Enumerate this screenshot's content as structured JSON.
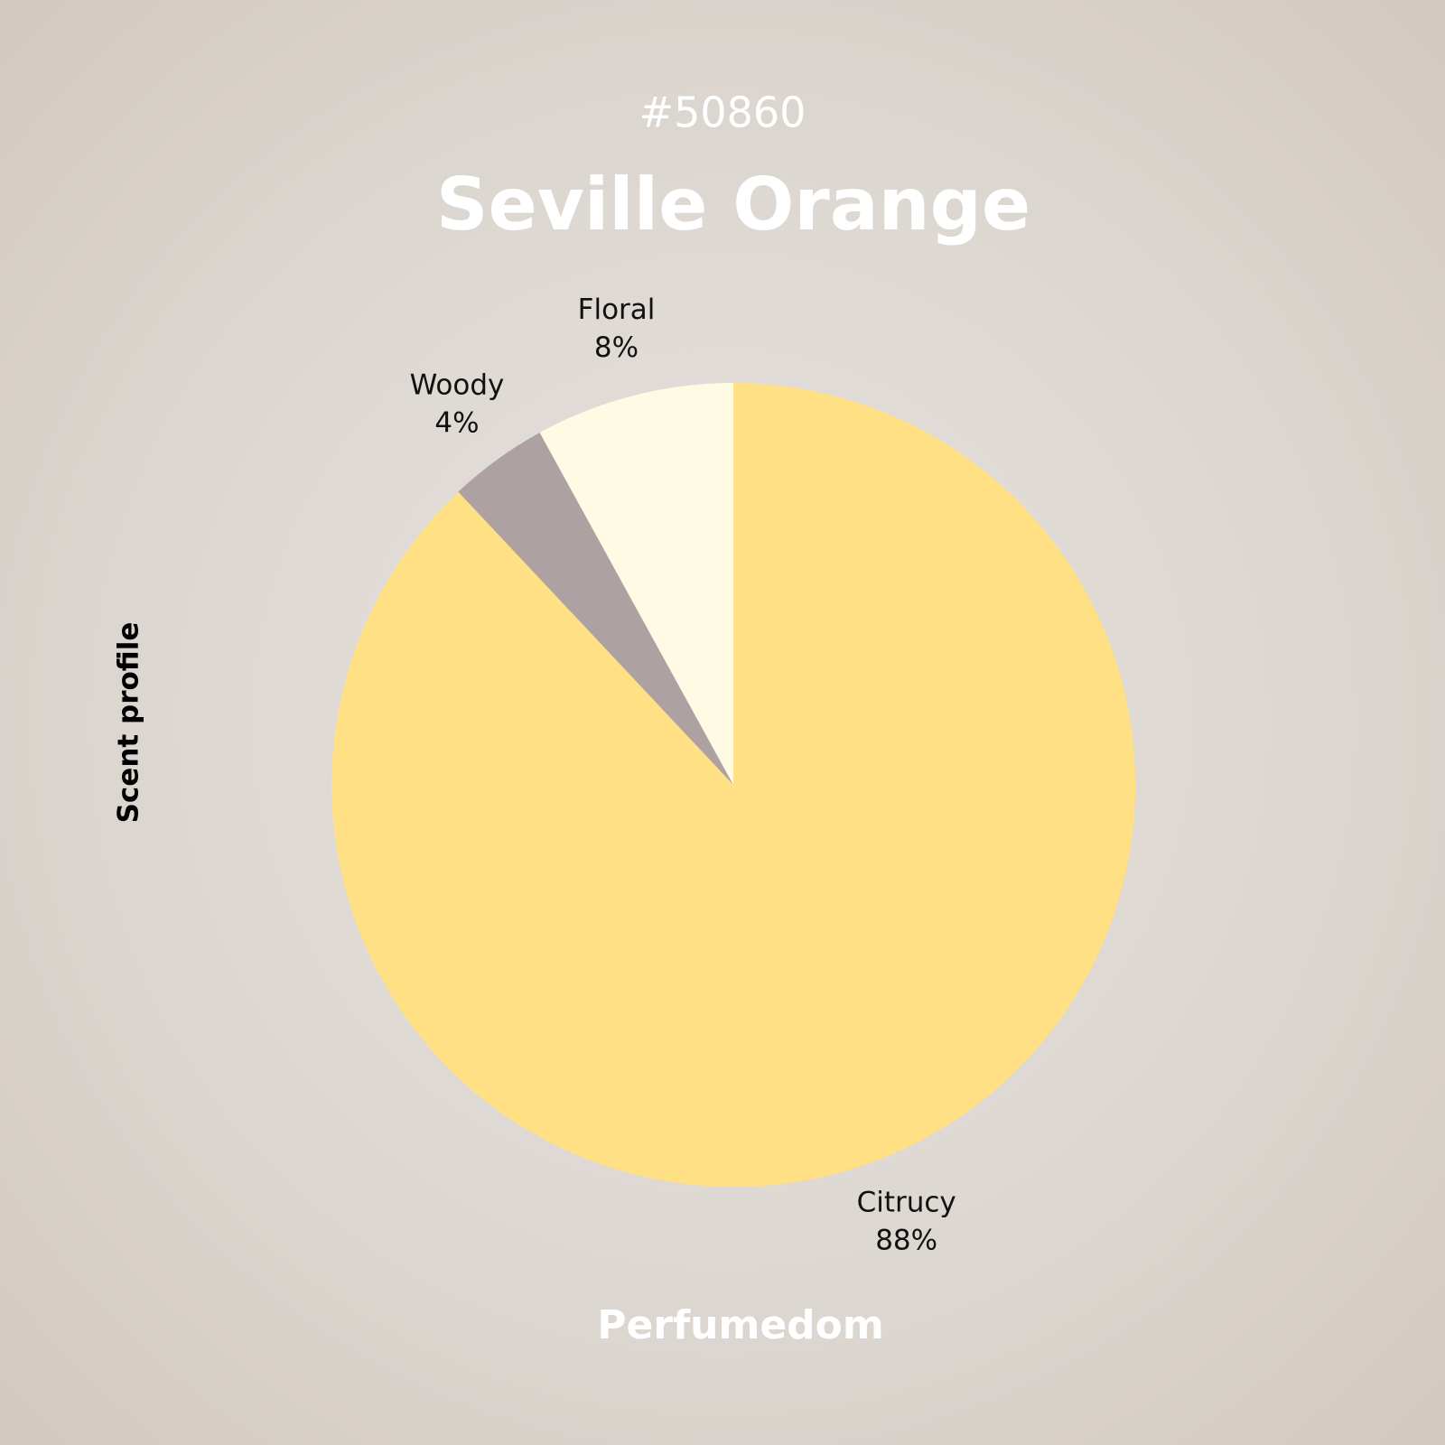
{
  "chart_data": {
    "type": "pie",
    "subtitle": "#50860",
    "title": "Seville Orange",
    "ylabel": "Scent profile",
    "footer": "Perfumedom",
    "categories": [
      "Citrucy",
      "Woody",
      "Floral"
    ],
    "values": [
      88,
      4,
      8
    ],
    "value_labels": [
      "88%",
      "4%",
      "8%"
    ],
    "colors": [
      "#ffe084",
      "#ada1a1",
      "#fffae3"
    ]
  }
}
